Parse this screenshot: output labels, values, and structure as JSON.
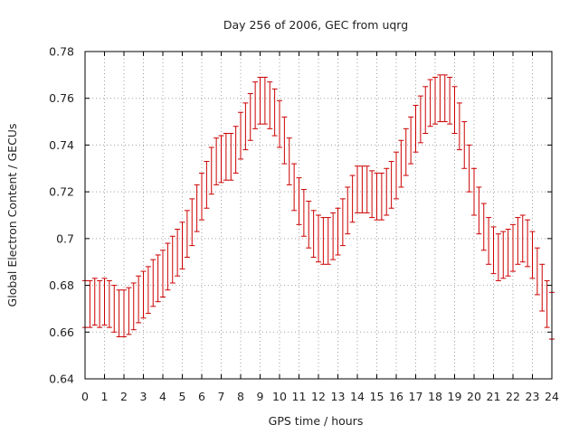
{
  "chart_data": {
    "type": "scatter",
    "title": "Day 256 of 2006, GEC from uqrg",
    "xlabel": "GPS time / hours",
    "ylabel": "Global Electron Content / GECUs",
    "xlim": [
      0,
      24
    ],
    "ylim": [
      0.64,
      0.78
    ],
    "grid": true,
    "xticks": [
      0,
      1,
      2,
      3,
      4,
      5,
      6,
      7,
      8,
      9,
      10,
      11,
      12,
      13,
      14,
      15,
      16,
      17,
      18,
      19,
      20,
      21,
      22,
      23,
      24
    ],
    "xtick_labels": [
      "0",
      "1",
      "2",
      "3",
      "4",
      "5",
      "6",
      "7",
      "8",
      "9",
      "10",
      "11",
      "12",
      "13",
      "14",
      "15",
      "16",
      "17",
      "18",
      "19",
      "20",
      "21",
      "22",
      "23",
      "24"
    ],
    "yticks": [
      0.64,
      0.66,
      0.68,
      0.7,
      0.72,
      0.74,
      0.76,
      0.78
    ],
    "ytick_labels": [
      "0.64",
      "0.66",
      "0.68",
      "0.7",
      "0.72",
      "0.74",
      "0.76",
      "0.78"
    ],
    "series": [
      {
        "name": "GEC",
        "color": "#cc0000",
        "error": 0.01,
        "x": [
          0,
          0.25,
          0.5,
          0.75,
          1,
          1.25,
          1.5,
          1.75,
          2,
          2.25,
          2.5,
          2.75,
          3,
          3.25,
          3.5,
          3.75,
          4,
          4.25,
          4.5,
          4.75,
          5,
          5.25,
          5.5,
          5.75,
          6,
          6.25,
          6.5,
          6.75,
          7,
          7.25,
          7.5,
          7.75,
          8,
          8.25,
          8.5,
          8.75,
          9,
          9.25,
          9.5,
          9.75,
          10,
          10.25,
          10.5,
          10.75,
          11,
          11.25,
          11.5,
          11.75,
          12,
          12.25,
          12.5,
          12.75,
          13,
          13.25,
          13.5,
          13.75,
          14,
          14.25,
          14.5,
          14.75,
          15,
          15.25,
          15.5,
          15.75,
          16,
          16.25,
          16.5,
          16.75,
          17,
          17.25,
          17.5,
          17.75,
          18,
          18.25,
          18.5,
          18.75,
          19,
          19.25,
          19.5,
          19.75,
          20,
          20.25,
          20.5,
          20.75,
          21,
          21.25,
          21.5,
          21.75,
          22,
          22.25,
          22.5,
          22.75,
          23,
          23.25,
          23.5,
          23.75,
          24
        ],
        "y": [
          0.672,
          0.672,
          0.673,
          0.672,
          0.673,
          0.672,
          0.67,
          0.668,
          0.668,
          0.669,
          0.671,
          0.674,
          0.676,
          0.678,
          0.681,
          0.683,
          0.685,
          0.688,
          0.691,
          0.694,
          0.697,
          0.702,
          0.707,
          0.713,
          0.718,
          0.723,
          0.729,
          0.733,
          0.734,
          0.735,
          0.735,
          0.738,
          0.744,
          0.748,
          0.752,
          0.757,
          0.759,
          0.759,
          0.757,
          0.754,
          0.749,
          0.742,
          0.733,
          0.722,
          0.716,
          0.711,
          0.706,
          0.702,
          0.7,
          0.699,
          0.699,
          0.701,
          0.703,
          0.707,
          0.712,
          0.717,
          0.721,
          0.721,
          0.721,
          0.719,
          0.718,
          0.718,
          0.72,
          0.723,
          0.727,
          0.732,
          0.737,
          0.742,
          0.747,
          0.751,
          0.755,
          0.758,
          0.759,
          0.76,
          0.76,
          0.759,
          0.755,
          0.748,
          0.74,
          0.73,
          0.72,
          0.712,
          0.705,
          0.699,
          0.695,
          0.692,
          0.693,
          0.694,
          0.696,
          0.699,
          0.7,
          0.698,
          0.693,
          0.686,
          0.679,
          0.672,
          0.667
        ]
      }
    ]
  }
}
